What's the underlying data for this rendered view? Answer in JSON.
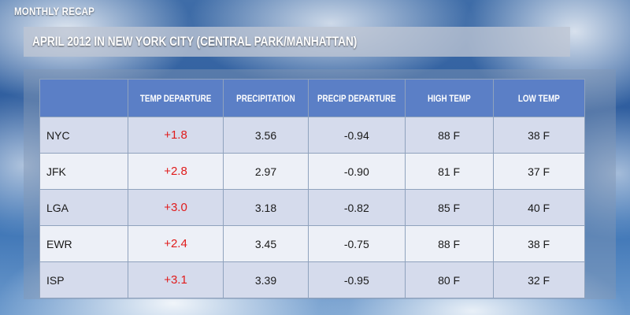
{
  "header": {
    "label": "MONTHLY RECAP",
    "title": "APRIL 2012 IN NEW YORK CITY (CENTRAL PARK/MANHATTAN)"
  },
  "colors": {
    "header_bg": "#5b7fc6",
    "row_odd": "#d5dbec",
    "row_even": "#edf0f7",
    "departure_text": "#e01b1b"
  },
  "table": {
    "columns": [
      "",
      "TEMP DEPARTURE",
      "PRECIPITATION",
      "PRECIP DEPARTURE",
      "HIGH TEMP",
      "LOW TEMP"
    ],
    "rows": [
      {
        "station": "NYC",
        "temp_departure": "+1.8",
        "precipitation": "3.56",
        "precip_departure": "-0.94",
        "high_temp": "88 F",
        "low_temp": "38 F"
      },
      {
        "station": "JFK",
        "temp_departure": "+2.8",
        "precipitation": "2.97",
        "precip_departure": "-0.90",
        "high_temp": "81 F",
        "low_temp": "37 F"
      },
      {
        "station": "LGA",
        "temp_departure": "+3.0",
        "precipitation": "3.18",
        "precip_departure": "-0.82",
        "high_temp": "85 F",
        "low_temp": "40 F"
      },
      {
        "station": "EWR",
        "temp_departure": "+2.4",
        "precipitation": "3.45",
        "precip_departure": "-0.75",
        "high_temp": "88 F",
        "low_temp": "38 F"
      },
      {
        "station": "ISP",
        "temp_departure": "+3.1",
        "precipitation": "3.39",
        "precip_departure": "-0.95",
        "high_temp": "80 F",
        "low_temp": "32 F"
      }
    ]
  }
}
